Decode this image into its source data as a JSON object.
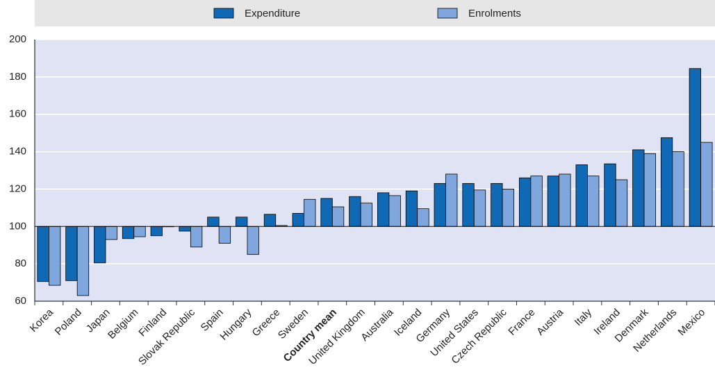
{
  "chart_data": {
    "type": "bar",
    "categories": [
      "Korea",
      "Poland",
      "Japan",
      "Belgium",
      "Finland",
      "Slovak Republic",
      "Spain",
      "Hungary",
      "Greece",
      "Sweden",
      "Country mean",
      "United Kingdom",
      "Australia",
      "Iceland",
      "Germany",
      "United States",
      "Czech Republic",
      "France",
      "Austria",
      "Italy",
      "Ireland",
      "Denmark",
      "Netherlands",
      "Mexico"
    ],
    "series": [
      {
        "name": "Expenditure",
        "color": "#0f69b4",
        "values": [
          70.5,
          71,
          80.5,
          93.5,
          95,
          97.5,
          105,
          105,
          106.5,
          107,
          115,
          116,
          118,
          119,
          123,
          123,
          123,
          126,
          127,
          133,
          133.5,
          141,
          147.5,
          184.5
        ]
      },
      {
        "name": "Enrolments",
        "color": "#7fa7dd",
        "values": [
          68.5,
          63,
          93,
          94.5,
          100,
          89,
          91,
          85,
          100.5,
          114.5,
          110.5,
          112.5,
          116.5,
          109.5,
          128,
          119.5,
          120,
          127,
          128,
          127,
          125,
          139,
          140,
          145
        ]
      }
    ],
    "baseline": 100,
    "ylim": [
      60,
      200
    ],
    "yticks": [
      60,
      80,
      100,
      120,
      140,
      160,
      180,
      200
    ],
    "grid": true,
    "legend": "top"
  }
}
